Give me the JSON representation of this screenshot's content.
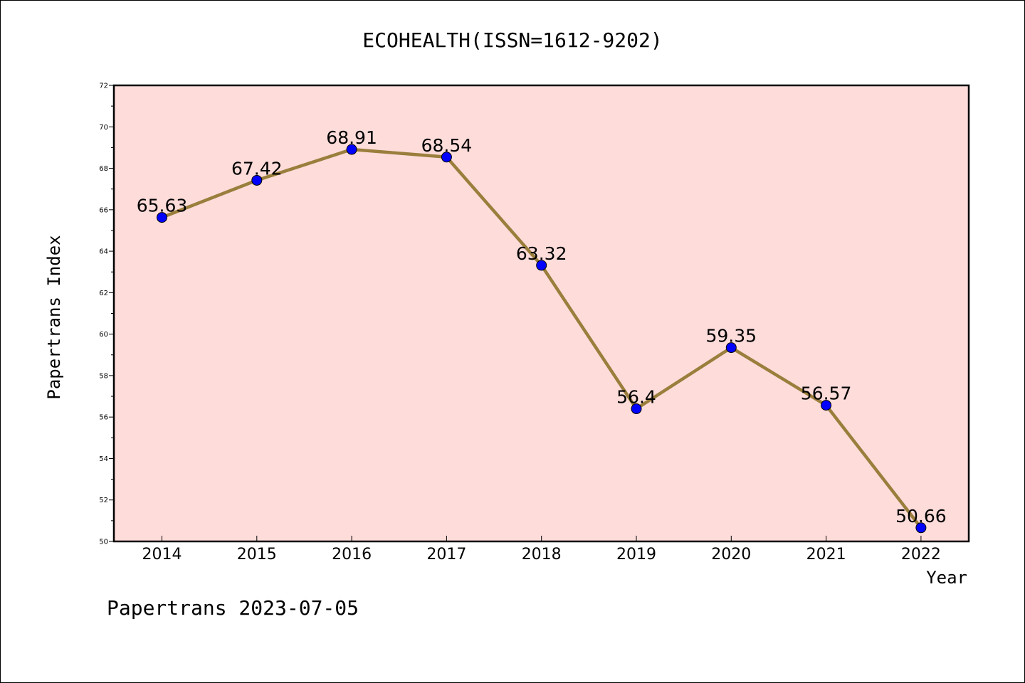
{
  "chart_data": {
    "type": "line",
    "title": "ECOHEALTH(ISSN=1612-9202)",
    "xlabel": "Year",
    "ylabel": "Papertrans Index",
    "categories": [
      "2014",
      "2015",
      "2016",
      "2017",
      "2018",
      "2019",
      "2020",
      "2021",
      "2022"
    ],
    "series": [
      {
        "values": [
          65.63,
          67.42,
          68.91,
          68.54,
          63.32,
          56.4,
          59.35,
          56.57,
          50.66
        ],
        "labels": [
          "65.63",
          "67.42",
          "68.91",
          "68.54",
          "63.32",
          "56.4",
          "59.35",
          "56.57",
          "50.66"
        ],
        "line_color": "#9a7e3c",
        "marker_color": "#0000ff"
      }
    ],
    "ylim": [
      50,
      72
    ],
    "yticks": [
      50,
      52,
      54,
      56,
      58,
      60,
      62,
      64,
      66,
      68,
      70,
      72
    ],
    "grid": false,
    "plot_background": "#fddcda"
  },
  "footer": "Papertrans 2023-07-05"
}
